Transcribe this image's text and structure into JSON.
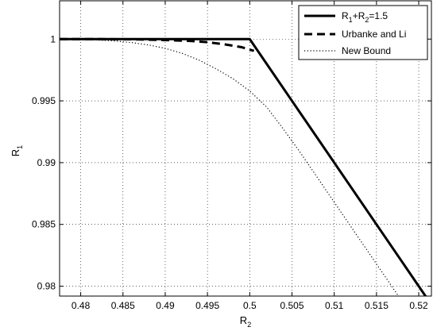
{
  "chart_data": {
    "type": "line",
    "xlabel": "R",
    "xlabel_sub": "2",
    "ylabel": "R",
    "ylabel_sub": "1",
    "xlim": [
      0.4775,
      0.5215
    ],
    "ylim": [
      0.9792,
      1.0031
    ],
    "grid": true,
    "legend_position": "top-right",
    "x_ticks": [
      0.48,
      0.485,
      0.49,
      0.495,
      0.5,
      0.505,
      0.51,
      0.515,
      0.52
    ],
    "x_tick_labels": [
      "0.48",
      "0.485",
      "0.49",
      "0.495",
      "0.5",
      "0.505",
      "0.51",
      "0.515",
      "0.52"
    ],
    "y_ticks": [
      0.98,
      0.985,
      0.99,
      0.995,
      1.0
    ],
    "y_tick_labels": [
      "0.98",
      "0.985",
      "0.99",
      "0.995",
      "1"
    ],
    "series": [
      {
        "legend_parts": [
          {
            "t": "R",
            "sub": false
          },
          {
            "t": "1",
            "sub": true
          },
          {
            "t": "+R",
            "sub": false
          },
          {
            "t": "2",
            "sub": true
          },
          {
            "t": "=1.5",
            "sub": false
          }
        ],
        "style": "solid",
        "width": 3,
        "color": "#000000",
        "x": [
          0.4775,
          0.5,
          0.5215
        ],
        "y": [
          1.0,
          1.0,
          0.9785
        ]
      },
      {
        "name": "Urbanke and Li",
        "style": "dashed",
        "width": 3,
        "color": "#000000",
        "x": [
          0.4775,
          0.482,
          0.486,
          0.49,
          0.493,
          0.495,
          0.497,
          0.499,
          0.5005
        ],
        "y": [
          1.0,
          1.0,
          0.99998,
          0.99992,
          0.99985,
          0.99975,
          0.99958,
          0.99935,
          0.99905
        ]
      },
      {
        "name": "New Bound",
        "style": "dotted",
        "width": 1.2,
        "color": "#000000",
        "x": [
          0.4775,
          0.48,
          0.482,
          0.484,
          0.486,
          0.488,
          0.49,
          0.492,
          0.494,
          0.496,
          0.498,
          0.5,
          0.502,
          0.504,
          0.506,
          0.508,
          0.51,
          0.512,
          0.514,
          0.516,
          0.518,
          0.5205
        ],
        "y": [
          1.0,
          0.99998,
          0.99993,
          0.99985,
          0.99972,
          0.99953,
          0.99925,
          0.99885,
          0.9983,
          0.9976,
          0.9968,
          0.9958,
          0.9945,
          0.9927,
          0.9908,
          0.9888,
          0.9868,
          0.9848,
          0.9828,
          0.9808,
          0.9788,
          0.9792
        ]
      }
    ]
  }
}
